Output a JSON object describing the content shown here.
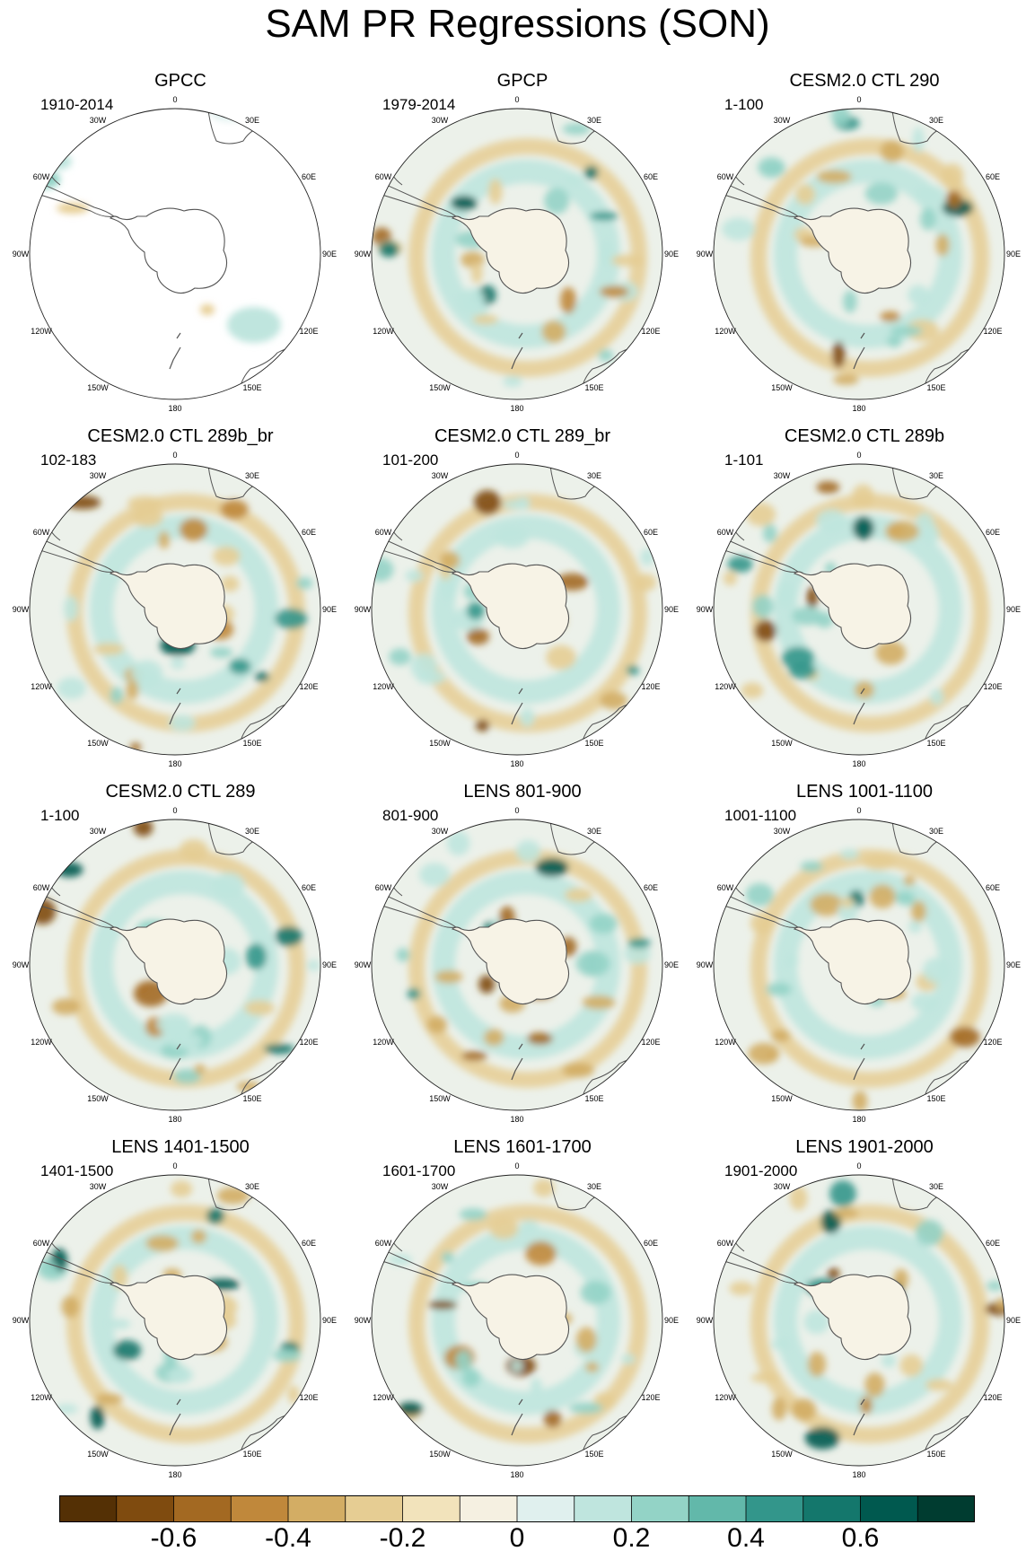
{
  "title": "SAM PR Regressions (SON)",
  "longitude_labels": [
    "0",
    "30E",
    "60E",
    "90E",
    "120E",
    "150E",
    "180",
    "150W",
    "120W",
    "90W",
    "60W",
    "30W"
  ],
  "panels": [
    {
      "title": "GPCC",
      "period": "1910-2014"
    },
    {
      "title": "GPCP",
      "period": "1979-2014"
    },
    {
      "title": "CESM2.0 CTL 290",
      "period": "1-100"
    },
    {
      "title": "CESM2.0 CTL 289b_br",
      "period": "102-183"
    },
    {
      "title": "CESM2.0 CTL 289_br",
      "period": "101-200"
    },
    {
      "title": "CESM2.0 CTL 289b",
      "period": "1-101"
    },
    {
      "title": "CESM2.0 CTL 289",
      "period": "1-100"
    },
    {
      "title": "LENS 801-900",
      "period": "801-900"
    },
    {
      "title": "LENS 1001-1100",
      "period": "1001-1100"
    },
    {
      "title": "LENS 1401-1500",
      "period": "1401-1500"
    },
    {
      "title": "LENS 1601-1700",
      "period": "1601-1700"
    },
    {
      "title": "LENS 1901-2000",
      "period": "1901-2000"
    }
  ],
  "colorbar": {
    "colors": [
      "#543005",
      "#7f4b0f",
      "#a36922",
      "#c0883b",
      "#d3ad64",
      "#e6cd93",
      "#f2e3bb",
      "#f5f0e1",
      "#e0f0ee",
      "#bfe5de",
      "#93d3c6",
      "#62b8aa",
      "#33968b",
      "#14776c",
      "#00594f",
      "#003c30"
    ],
    "tick_labels": [
      "-0.6",
      "-0.4",
      "-0.2",
      "0",
      "0.2",
      "0.4",
      "0.6"
    ],
    "tick_values": [
      -0.6,
      -0.4,
      -0.2,
      0,
      0.2,
      0.4,
      0.6
    ],
    "range": [
      -0.8,
      0.8
    ]
  }
}
